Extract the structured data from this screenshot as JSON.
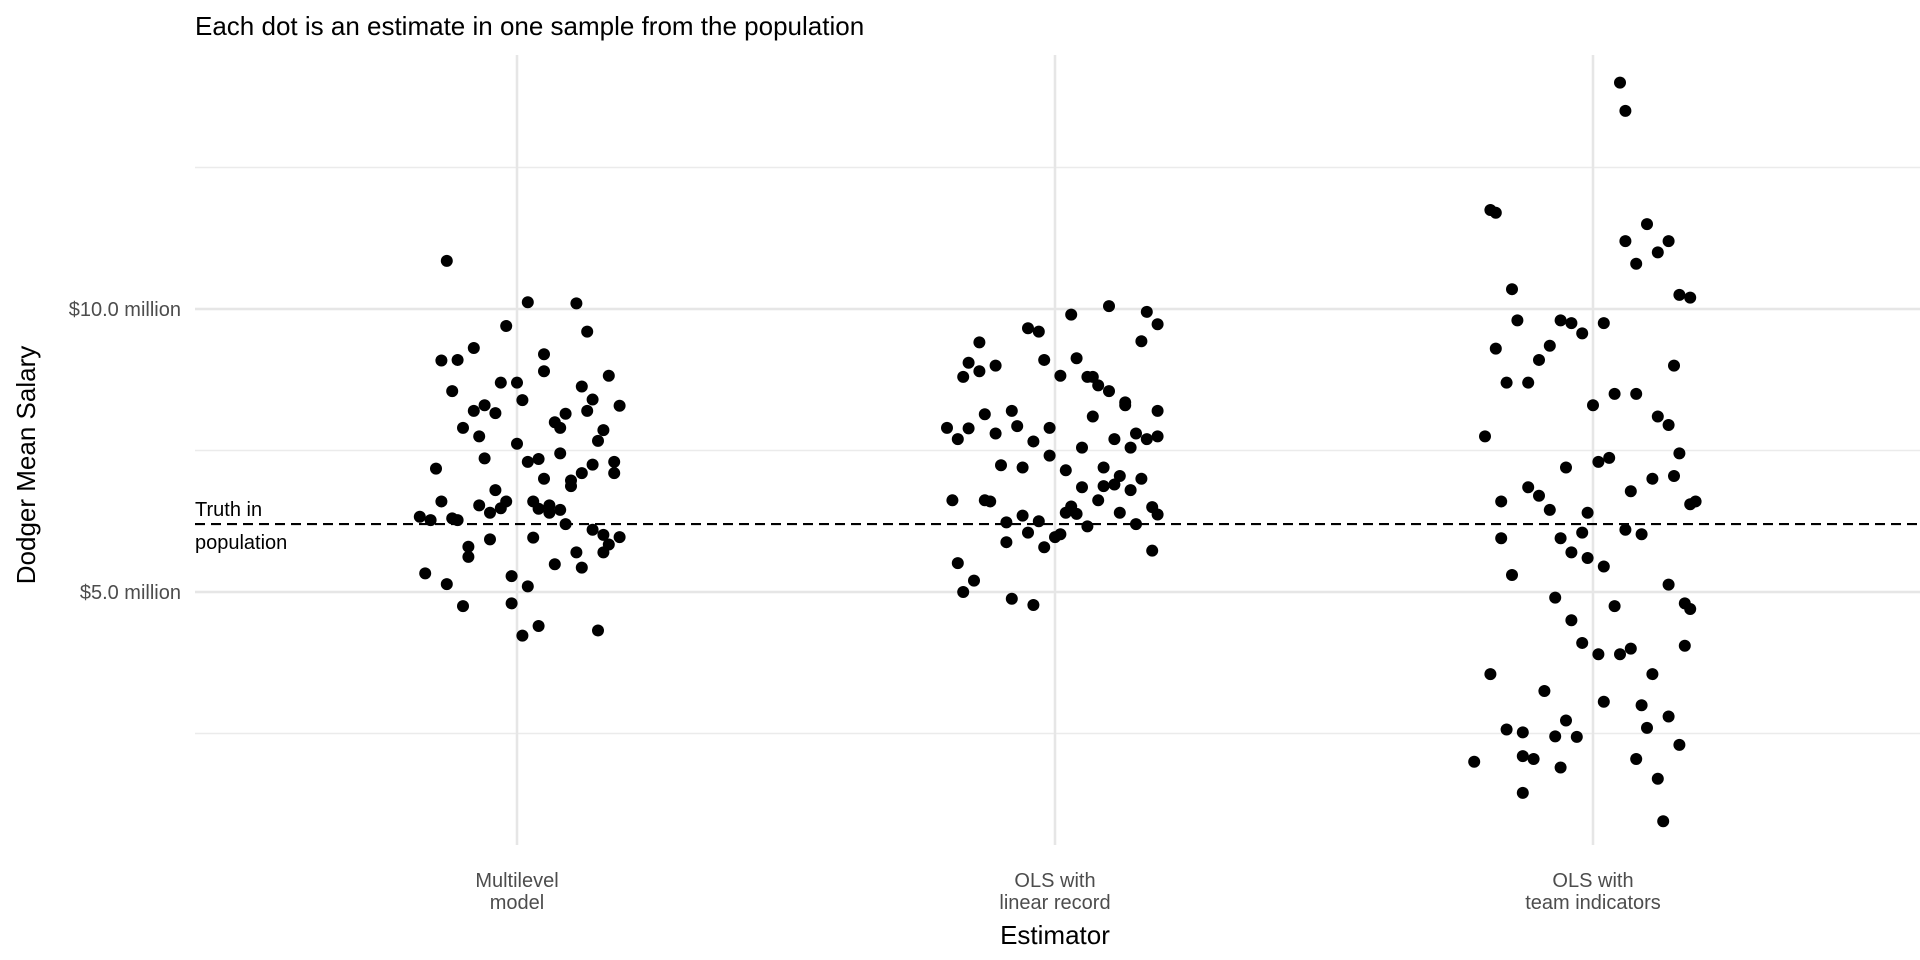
{
  "chart_data": {
    "type": "scatter",
    "title": "Each dot is an estimate in one sample from the population",
    "xlabel": "Estimator",
    "ylabel": "Dodger Mean Salary",
    "categories": [
      [
        "Multilevel",
        "model"
      ],
      [
        "OLS with",
        "linear record"
      ],
      [
        "OLS with",
        "team indicators"
      ]
    ],
    "y_ticks": [
      {
        "value": 5.0,
        "label": "$5.0 million"
      },
      {
        "value": 10.0,
        "label": "$10.0 million"
      }
    ],
    "y_minor_gridlines": [
      2.5,
      7.5,
      12.5
    ],
    "ylim": [
      0.3,
      14.2
    ],
    "grid": true,
    "reference_line": {
      "value": 6.2,
      "style": "dashed",
      "label": [
        "Truth in",
        "population"
      ]
    },
    "point_color": "#000000",
    "series": [
      {
        "category_index": 0,
        "points": [
          [
            -0.18,
            6.33
          ],
          [
            -0.14,
            9.09
          ],
          [
            -0.12,
            8.55
          ],
          [
            -0.1,
            7.9
          ],
          [
            -0.08,
            9.31
          ],
          [
            -0.06,
            8.3
          ],
          [
            -0.04,
            8.16
          ],
          [
            -0.02,
            6.6
          ],
          [
            0.0,
            7.62
          ],
          [
            0.02,
            7.3
          ],
          [
            0.04,
            6.47
          ],
          [
            0.06,
            6.4
          ],
          [
            0.08,
            7.9
          ],
          [
            0.1,
            6.87
          ],
          [
            0.12,
            8.63
          ],
          [
            0.14,
            7.25
          ],
          [
            0.16,
            6.01
          ],
          [
            0.18,
            7.1
          ],
          [
            0.17,
            8.82
          ],
          [
            0.19,
            8.29
          ],
          [
            0.15,
            7.67
          ],
          [
            0.11,
            5.7
          ],
          [
            0.07,
            5.49
          ],
          [
            0.03,
            5.96
          ],
          [
            -0.01,
            5.28
          ],
          [
            -0.05,
            5.93
          ],
          [
            -0.09,
            5.62
          ],
          [
            -0.13,
            5.14
          ],
          [
            -0.16,
            6.27
          ],
          [
            -0.11,
            6.27
          ],
          [
            -0.07,
            6.53
          ],
          [
            -0.03,
            6.48
          ],
          [
            0.01,
            8.39
          ],
          [
            0.05,
            7.0
          ],
          [
            0.09,
            6.2
          ],
          [
            0.13,
            9.6
          ],
          [
            0.16,
            7.86
          ],
          [
            0.04,
            4.4
          ],
          [
            0.01,
            4.23
          ],
          [
            -0.1,
            4.75
          ],
          [
            0.15,
            4.32
          ],
          [
            -0.13,
            10.85
          ],
          [
            0.02,
            10.12
          ],
          [
            0.11,
            10.1
          ],
          [
            -0.02,
            9.7
          ],
          [
            0.05,
            9.2
          ],
          [
            -0.08,
            8.2
          ],
          [
            0.0,
            8.7
          ],
          [
            0.08,
            7.45
          ],
          [
            0.12,
            7.1
          ],
          [
            -0.15,
            7.18
          ],
          [
            0.18,
            7.3
          ],
          [
            -0.04,
            6.8
          ],
          [
            0.06,
            6.53
          ],
          [
            -0.12,
            6.3
          ],
          [
            0.14,
            6.1
          ],
          [
            0.17,
            5.84
          ],
          [
            -0.09,
            5.8
          ],
          [
            0.03,
            6.6
          ],
          [
            0.1,
            6.97
          ],
          [
            -0.06,
            7.36
          ],
          [
            0.07,
            8.0
          ],
          [
            -0.03,
            8.7
          ],
          [
            0.13,
            8.2
          ],
          [
            -0.17,
            5.33
          ],
          [
            0.12,
            5.43
          ],
          [
            -0.01,
            4.8
          ],
          [
            0.02,
            5.1
          ],
          [
            0.16,
            5.7
          ],
          [
            0.19,
            5.97
          ],
          [
            -0.11,
            9.1
          ],
          [
            0.05,
            8.9
          ],
          [
            0.09,
            8.15
          ],
          [
            -0.07,
            7.75
          ],
          [
            0.04,
            7.35
          ],
          [
            0.14,
            8.4
          ],
          [
            -0.14,
            6.6
          ],
          [
            0.08,
            6.45
          ],
          [
            -0.05,
            6.4
          ]
        ]
      },
      {
        "category_index": 1,
        "points": [
          [
            -0.2,
            7.9
          ],
          [
            -0.17,
            8.8
          ],
          [
            -0.14,
            9.41
          ],
          [
            -0.11,
            9.0
          ],
          [
            -0.08,
            8.2
          ],
          [
            -0.05,
            9.66
          ],
          [
            -0.02,
            9.1
          ],
          [
            0.01,
            8.82
          ],
          [
            0.04,
            9.13
          ],
          [
            0.07,
            8.8
          ],
          [
            0.1,
            8.55
          ],
          [
            0.13,
            8.3
          ],
          [
            0.16,
            9.43
          ],
          [
            0.19,
            8.2
          ],
          [
            -0.19,
            6.62
          ],
          [
            -0.16,
            7.89
          ],
          [
            -0.13,
            8.14
          ],
          [
            -0.1,
            7.24
          ],
          [
            -0.07,
            7.93
          ],
          [
            -0.04,
            7.66
          ],
          [
            -0.01,
            7.41
          ],
          [
            0.02,
            7.15
          ],
          [
            0.05,
            6.85
          ],
          [
            0.08,
            6.62
          ],
          [
            0.11,
            7.7
          ],
          [
            0.14,
            7.55
          ],
          [
            0.17,
            7.7
          ],
          [
            0.19,
            6.37
          ],
          [
            -0.18,
            5.51
          ],
          [
            -0.15,
            5.2
          ],
          [
            -0.12,
            6.6
          ],
          [
            -0.09,
            6.23
          ],
          [
            -0.06,
            6.35
          ],
          [
            -0.03,
            6.25
          ],
          [
            0.0,
            5.97
          ],
          [
            0.03,
            6.51
          ],
          [
            0.06,
            6.16
          ],
          [
            0.09,
            6.87
          ],
          [
            0.12,
            6.4
          ],
          [
            0.15,
            6.2
          ],
          [
            0.18,
            5.73
          ],
          [
            -0.17,
            5.0
          ],
          [
            -0.08,
            4.88
          ],
          [
            -0.04,
            4.77
          ],
          [
            0.03,
            9.9
          ],
          [
            0.1,
            10.05
          ],
          [
            0.17,
            9.95
          ],
          [
            0.19,
            9.73
          ],
          [
            -0.03,
            9.6
          ],
          [
            -0.11,
            7.8
          ],
          [
            0.07,
            8.1
          ],
          [
            -0.14,
            8.9
          ],
          [
            0.01,
            6.02
          ],
          [
            -0.02,
            5.79
          ],
          [
            0.13,
            8.35
          ],
          [
            0.05,
            7.55
          ],
          [
            0.11,
            6.9
          ],
          [
            -0.06,
            7.2
          ],
          [
            0.15,
            7.8
          ],
          [
            0.08,
            8.65
          ],
          [
            -0.09,
            5.88
          ],
          [
            0.18,
            6.5
          ],
          [
            0.04,
            6.38
          ],
          [
            -0.13,
            6.62
          ],
          [
            0.09,
            7.2
          ],
          [
            0.16,
            7.0
          ],
          [
            -0.01,
            7.9
          ],
          [
            0.06,
            8.8
          ],
          [
            -0.16,
            9.05
          ],
          [
            0.12,
            7.05
          ],
          [
            -0.05,
            6.05
          ],
          [
            0.02,
            6.4
          ],
          [
            0.14,
            6.8
          ],
          [
            0.19,
            7.75
          ],
          [
            -0.18,
            7.7
          ]
        ]
      },
      {
        "category_index": 2,
        "points": [
          [
            -0.2,
            7.75
          ],
          [
            -0.18,
            9.3
          ],
          [
            -0.16,
            8.7
          ],
          [
            -0.14,
            9.8
          ],
          [
            -0.12,
            8.7
          ],
          [
            -0.1,
            9.1
          ],
          [
            -0.08,
            9.35
          ],
          [
            -0.06,
            9.8
          ],
          [
            -0.04,
            9.75
          ],
          [
            -0.02,
            9.57
          ],
          [
            0.0,
            8.3
          ],
          [
            0.02,
            9.75
          ],
          [
            0.04,
            8.5
          ],
          [
            0.06,
            11.2
          ],
          [
            0.08,
            10.8
          ],
          [
            0.1,
            11.5
          ],
          [
            0.12,
            11.0
          ],
          [
            0.14,
            11.2
          ],
          [
            0.16,
            10.25
          ],
          [
            0.18,
            10.2
          ],
          [
            -0.19,
            11.75
          ],
          [
            -0.18,
            11.7
          ],
          [
            -0.15,
            10.35
          ],
          [
            0.05,
            14.0
          ],
          [
            0.06,
            13.5
          ],
          [
            -0.17,
            6.6
          ],
          [
            -0.15,
            5.3
          ],
          [
            -0.12,
            6.85
          ],
          [
            -0.1,
            6.7
          ],
          [
            -0.08,
            6.45
          ],
          [
            -0.06,
            5.95
          ],
          [
            -0.04,
            5.7
          ],
          [
            -0.02,
            6.05
          ],
          [
            0.01,
            7.3
          ],
          [
            0.03,
            7.37
          ],
          [
            0.07,
            6.78
          ],
          [
            0.09,
            6.02
          ],
          [
            0.11,
            7.0
          ],
          [
            0.14,
            7.95
          ],
          [
            0.16,
            7.45
          ],
          [
            0.18,
            6.55
          ],
          [
            -0.17,
            5.95
          ],
          [
            -0.07,
            4.9
          ],
          [
            -0.04,
            4.5
          ],
          [
            -0.02,
            4.1
          ],
          [
            0.01,
            3.9
          ],
          [
            0.04,
            4.75
          ],
          [
            0.07,
            4.0
          ],
          [
            0.11,
            3.55
          ],
          [
            0.14,
            5.13
          ],
          [
            0.17,
            4.8
          ],
          [
            0.18,
            4.7
          ],
          [
            -0.19,
            3.55
          ],
          [
            -0.16,
            2.57
          ],
          [
            -0.13,
            2.52
          ],
          [
            -0.11,
            2.05
          ],
          [
            -0.09,
            3.25
          ],
          [
            -0.07,
            2.45
          ],
          [
            -0.05,
            2.73
          ],
          [
            -0.03,
            2.44
          ],
          [
            0.02,
            3.06
          ],
          [
            0.05,
            3.9
          ],
          [
            0.08,
            2.05
          ],
          [
            0.1,
            2.6
          ],
          [
            0.12,
            1.7
          ],
          [
            0.14,
            2.8
          ],
          [
            0.16,
            2.3
          ],
          [
            0.13,
            0.95
          ],
          [
            -0.13,
            1.45
          ],
          [
            -0.06,
            1.9
          ],
          [
            -0.22,
            2.0
          ],
          [
            -0.13,
            2.1
          ],
          [
            0.09,
            3.0
          ],
          [
            0.17,
            4.05
          ],
          [
            0.19,
            6.6
          ],
          [
            0.15,
            7.05
          ],
          [
            -0.05,
            7.2
          ],
          [
            -0.01,
            6.4
          ],
          [
            0.06,
            6.1
          ],
          [
            0.12,
            8.1
          ],
          [
            0.15,
            9.0
          ],
          [
            -0.01,
            5.6
          ],
          [
            0.02,
            5.45
          ],
          [
            0.08,
            8.5
          ]
        ]
      }
    ]
  }
}
